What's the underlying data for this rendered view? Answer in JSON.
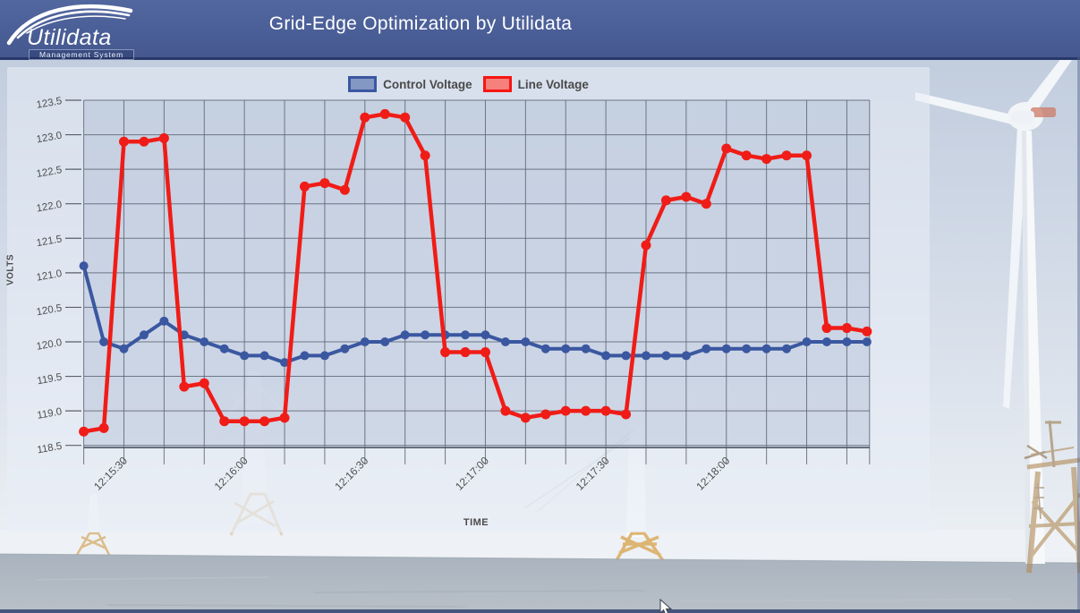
{
  "header": {
    "title": "Grid-Edge Optimization by Utilidata",
    "logo": {
      "name": "Utilidata",
      "subtitle": "Management System"
    }
  },
  "colors": {
    "header_bg": "#4a5e97",
    "header_border": "#27386b",
    "control_voltage": "#3a57a0",
    "control_swatch_fill": "#8498c4",
    "line_voltage": "#f01c17",
    "line_swatch_fill": "#f5807c",
    "gridline": "#646c7a",
    "axis_text": "#4f4f4f"
  },
  "legend": [
    {
      "label": "Control Voltage",
      "border": "#3a57a0",
      "fill": "#8498c4"
    },
    {
      "label": "Line Voltage",
      "border": "#f71612",
      "fill": "#f5807c"
    }
  ],
  "chart_data": {
    "type": "line",
    "title": "",
    "xlabel": "TIME",
    "ylabel": "VOLTS",
    "ylim": [
      118.5,
      123.5
    ],
    "grid": true,
    "legend_position": "top-center",
    "y_ticks": [
      123.5,
      123.0,
      122.5,
      122.0,
      121.5,
      121.0,
      120.5,
      120.0,
      119.5,
      119.0,
      118.5
    ],
    "x": [
      "12:15:20",
      "12:15:25",
      "12:15:30",
      "12:15:35",
      "12:15:40",
      "12:15:45",
      "12:15:50",
      "12:15:55",
      "12:16:00",
      "12:16:05",
      "12:16:10",
      "12:16:15",
      "12:16:20",
      "12:16:25",
      "12:16:30",
      "12:16:35",
      "12:16:40",
      "12:16:45",
      "12:16:50",
      "12:16:55",
      "12:17:00",
      "12:17:05",
      "12:17:10",
      "12:17:15",
      "12:17:20",
      "12:17:25",
      "12:17:30",
      "12:17:35",
      "12:17:40",
      "12:17:45",
      "12:17:50",
      "12:17:55",
      "12:18:00",
      "12:18:05",
      "12:18:10",
      "12:18:15",
      "12:18:20",
      "12:18:25",
      "12:18:30",
      "12:18:35"
    ],
    "x_label_indices": [
      2,
      8,
      14,
      20,
      26,
      32
    ],
    "x_labels_shown": [
      "12:15:30",
      "12:16:00",
      "12:16:30",
      "12:17:00",
      "12:17:30",
      "12:18:00"
    ],
    "series": [
      {
        "name": "Control Voltage",
        "color": "#3a57a0",
        "values": [
          121.1,
          120.0,
          119.9,
          120.1,
          120.3,
          120.1,
          120.0,
          119.9,
          119.8,
          119.8,
          119.7,
          119.8,
          119.8,
          119.9,
          120.0,
          120.0,
          120.1,
          120.1,
          120.1,
          120.1,
          120.1,
          120.0,
          120.0,
          119.9,
          119.9,
          119.9,
          119.8,
          119.8,
          119.8,
          119.8,
          119.8,
          119.9,
          119.9,
          119.9,
          119.9,
          119.9,
          120.0,
          120.0,
          120.0,
          120.0
        ]
      },
      {
        "name": "Line Voltage",
        "color": "#f01c17",
        "values": [
          118.7,
          118.75,
          122.9,
          122.9,
          122.95,
          119.35,
          119.4,
          118.85,
          118.85,
          118.85,
          118.9,
          122.25,
          122.3,
          122.2,
          123.25,
          123.3,
          123.25,
          122.7,
          119.85,
          119.85,
          119.85,
          119.0,
          118.9,
          118.95,
          119.0,
          119.0,
          119.0,
          118.95,
          121.4,
          122.05,
          122.1,
          122.0,
          122.8,
          122.7,
          122.65,
          122.7,
          122.7,
          120.2,
          120.2,
          120.15
        ]
      }
    ]
  }
}
